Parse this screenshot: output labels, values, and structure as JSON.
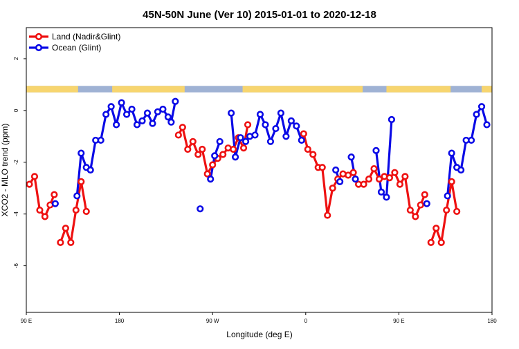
{
  "chart_data": {
    "type": "line",
    "title": "45N-50N June (Ver 10)   2015-01-01 to 2020-12-18",
    "xlabel": "Longitude (deg E)",
    "ylabel": "XCO2 - MLO trend (ppm)",
    "x_ticks": [
      {
        "value": 90,
        "label": "90 E"
      },
      {
        "value": 180,
        "label": "180"
      },
      {
        "value": 270,
        "label": "90 W"
      },
      {
        "value": 360,
        "label": "0"
      },
      {
        "value": 450,
        "label": "90 E"
      },
      {
        "value": 540,
        "label": "180"
      }
    ],
    "y_ticks": [
      {
        "value": 2,
        "label": "2"
      },
      {
        "value": 0,
        "label": "0"
      },
      {
        "value": -2,
        "label": "-2"
      },
      {
        "value": -4,
        "label": "-4"
      },
      {
        "value": -6,
        "label": "-6"
      }
    ],
    "xlim": [
      90,
      540
    ],
    "ylim": [
      -7.8,
      3.2
    ],
    "legend_position": "top-left",
    "colors": {
      "land": "#ee1111",
      "ocean": "#0a0ae6",
      "land_strip": "#f7d56f",
      "ocean_strip": "#9fb2d4"
    },
    "surface_strip": {
      "y_range": [
        0.7,
        0.95
      ],
      "land_spans": [
        [
          90,
          140
        ],
        [
          173,
          243
        ],
        [
          299,
          415
        ],
        [
          438,
          500
        ],
        [
          530,
          540
        ]
      ]
    },
    "series": [
      {
        "name": "Land (Nadir&Glint)",
        "color": "#ee1111",
        "segments": [
          [
            [
              93,
              -2.85
            ],
            [
              98,
              -2.55
            ],
            [
              103,
              -3.85
            ],
            [
              108,
              -4.1
            ],
            [
              113,
              -3.65
            ],
            [
              117,
              -3.25
            ]
          ],
          [
            [
              123,
              -5.1
            ],
            [
              128,
              -4.55
            ],
            [
              133,
              -5.1
            ],
            [
              138,
              -3.85
            ],
            [
              143,
              -2.75
            ],
            [
              148,
              -3.9
            ]
          ],
          [
            [
              237,
              -0.95
            ],
            [
              241,
              -0.65
            ],
            [
              246,
              -1.5
            ],
            [
              251,
              -1.2
            ],
            [
              256,
              -1.7
            ],
            [
              260,
              -1.5
            ],
            [
              265,
              -2.45
            ],
            [
              270,
              -2.1
            ],
            [
              275,
              -1.85
            ],
            [
              280,
              -1.7
            ],
            [
              285,
              -1.45
            ],
            [
              290,
              -1.5
            ],
            [
              295,
              -1.05
            ],
            [
              300,
              -1.45
            ],
            [
              304,
              -0.55
            ]
          ],
          [
            [
              358,
              -0.9
            ],
            [
              362,
              -1.5
            ],
            [
              367,
              -1.7
            ],
            [
              372,
              -2.2
            ],
            [
              376,
              -2.2
            ],
            [
              381,
              -4.05
            ],
            [
              386,
              -3.0
            ],
            [
              391,
              -2.65
            ],
            [
              396,
              -2.45
            ],
            [
              401,
              -2.5
            ],
            [
              406,
              -2.4
            ],
            [
              411,
              -2.85
            ],
            [
              416,
              -2.85
            ],
            [
              421,
              -2.65
            ],
            [
              426,
              -2.25
            ],
            [
              431,
              -2.65
            ],
            [
              436,
              -2.55
            ],
            [
              441,
              -2.6
            ],
            [
              446,
              -2.4
            ],
            [
              451,
              -2.85
            ],
            [
              456,
              -2.55
            ],
            [
              461,
              -3.85
            ],
            [
              466,
              -4.1
            ],
            [
              471,
              -3.65
            ],
            [
              475,
              -3.25
            ]
          ],
          [
            [
              481,
              -5.1
            ],
            [
              486,
              -4.55
            ],
            [
              491,
              -5.1
            ],
            [
              496,
              -3.85
            ],
            [
              501,
              -2.75
            ],
            [
              506,
              -3.9
            ]
          ]
        ]
      },
      {
        "name": "Ocean (Glint)",
        "color": "#0a0ae6",
        "segments": [
          [
            [
              118,
              -3.6
            ]
          ],
          [
            [
              139,
              -3.3
            ],
            [
              143,
              -1.65
            ],
            [
              148,
              -2.2
            ],
            [
              152,
              -2.3
            ],
            [
              157,
              -1.15
            ],
            [
              162,
              -1.15
            ],
            [
              167,
              -0.15
            ],
            [
              172,
              0.15
            ],
            [
              177,
              -0.55
            ],
            [
              182,
              0.3
            ],
            [
              187,
              -0.15
            ],
            [
              192,
              0.05
            ],
            [
              197,
              -0.55
            ],
            [
              202,
              -0.4
            ],
            [
              207,
              -0.1
            ],
            [
              212,
              -0.5
            ],
            [
              217,
              -0.05
            ],
            [
              222,
              0.05
            ],
            [
              227,
              -0.25
            ],
            [
              230,
              -0.45
            ],
            [
              234,
              0.35
            ]
          ],
          [
            [
              258,
              -3.8
            ]
          ],
          [
            [
              268,
              -2.65
            ],
            [
              272,
              -1.75
            ],
            [
              277,
              -1.2
            ]
          ],
          [
            [
              288,
              -0.1
            ],
            [
              292,
              -1.8
            ],
            [
              297,
              -1.05
            ],
            [
              302,
              -1.2
            ],
            [
              306,
              -1.0
            ],
            [
              311,
              -0.95
            ],
            [
              316,
              -0.15
            ],
            [
              321,
              -0.55
            ],
            [
              326,
              -1.2
            ],
            [
              331,
              -0.7
            ],
            [
              336,
              -0.1
            ],
            [
              341,
              -1.0
            ],
            [
              346,
              -0.4
            ],
            [
              351,
              -0.6
            ],
            [
              356,
              -1.15
            ]
          ],
          [
            [
              389,
              -2.3
            ],
            [
              393,
              -2.75
            ]
          ],
          [
            [
              404,
              -1.8
            ],
            [
              408,
              -2.65
            ]
          ],
          [
            [
              428,
              -1.55
            ],
            [
              433,
              -3.15
            ],
            [
              438,
              -3.35
            ],
            [
              443,
              -0.35
            ]
          ],
          [
            [
              477,
              -3.6
            ]
          ],
          [
            [
              497,
              -3.3
            ],
            [
              501,
              -1.65
            ],
            [
              506,
              -2.2
            ],
            [
              510,
              -2.3
            ],
            [
              515,
              -1.15
            ],
            [
              520,
              -1.15
            ],
            [
              525,
              -0.15
            ],
            [
              530,
              0.15
            ],
            [
              535,
              -0.55
            ]
          ]
        ]
      }
    ]
  }
}
